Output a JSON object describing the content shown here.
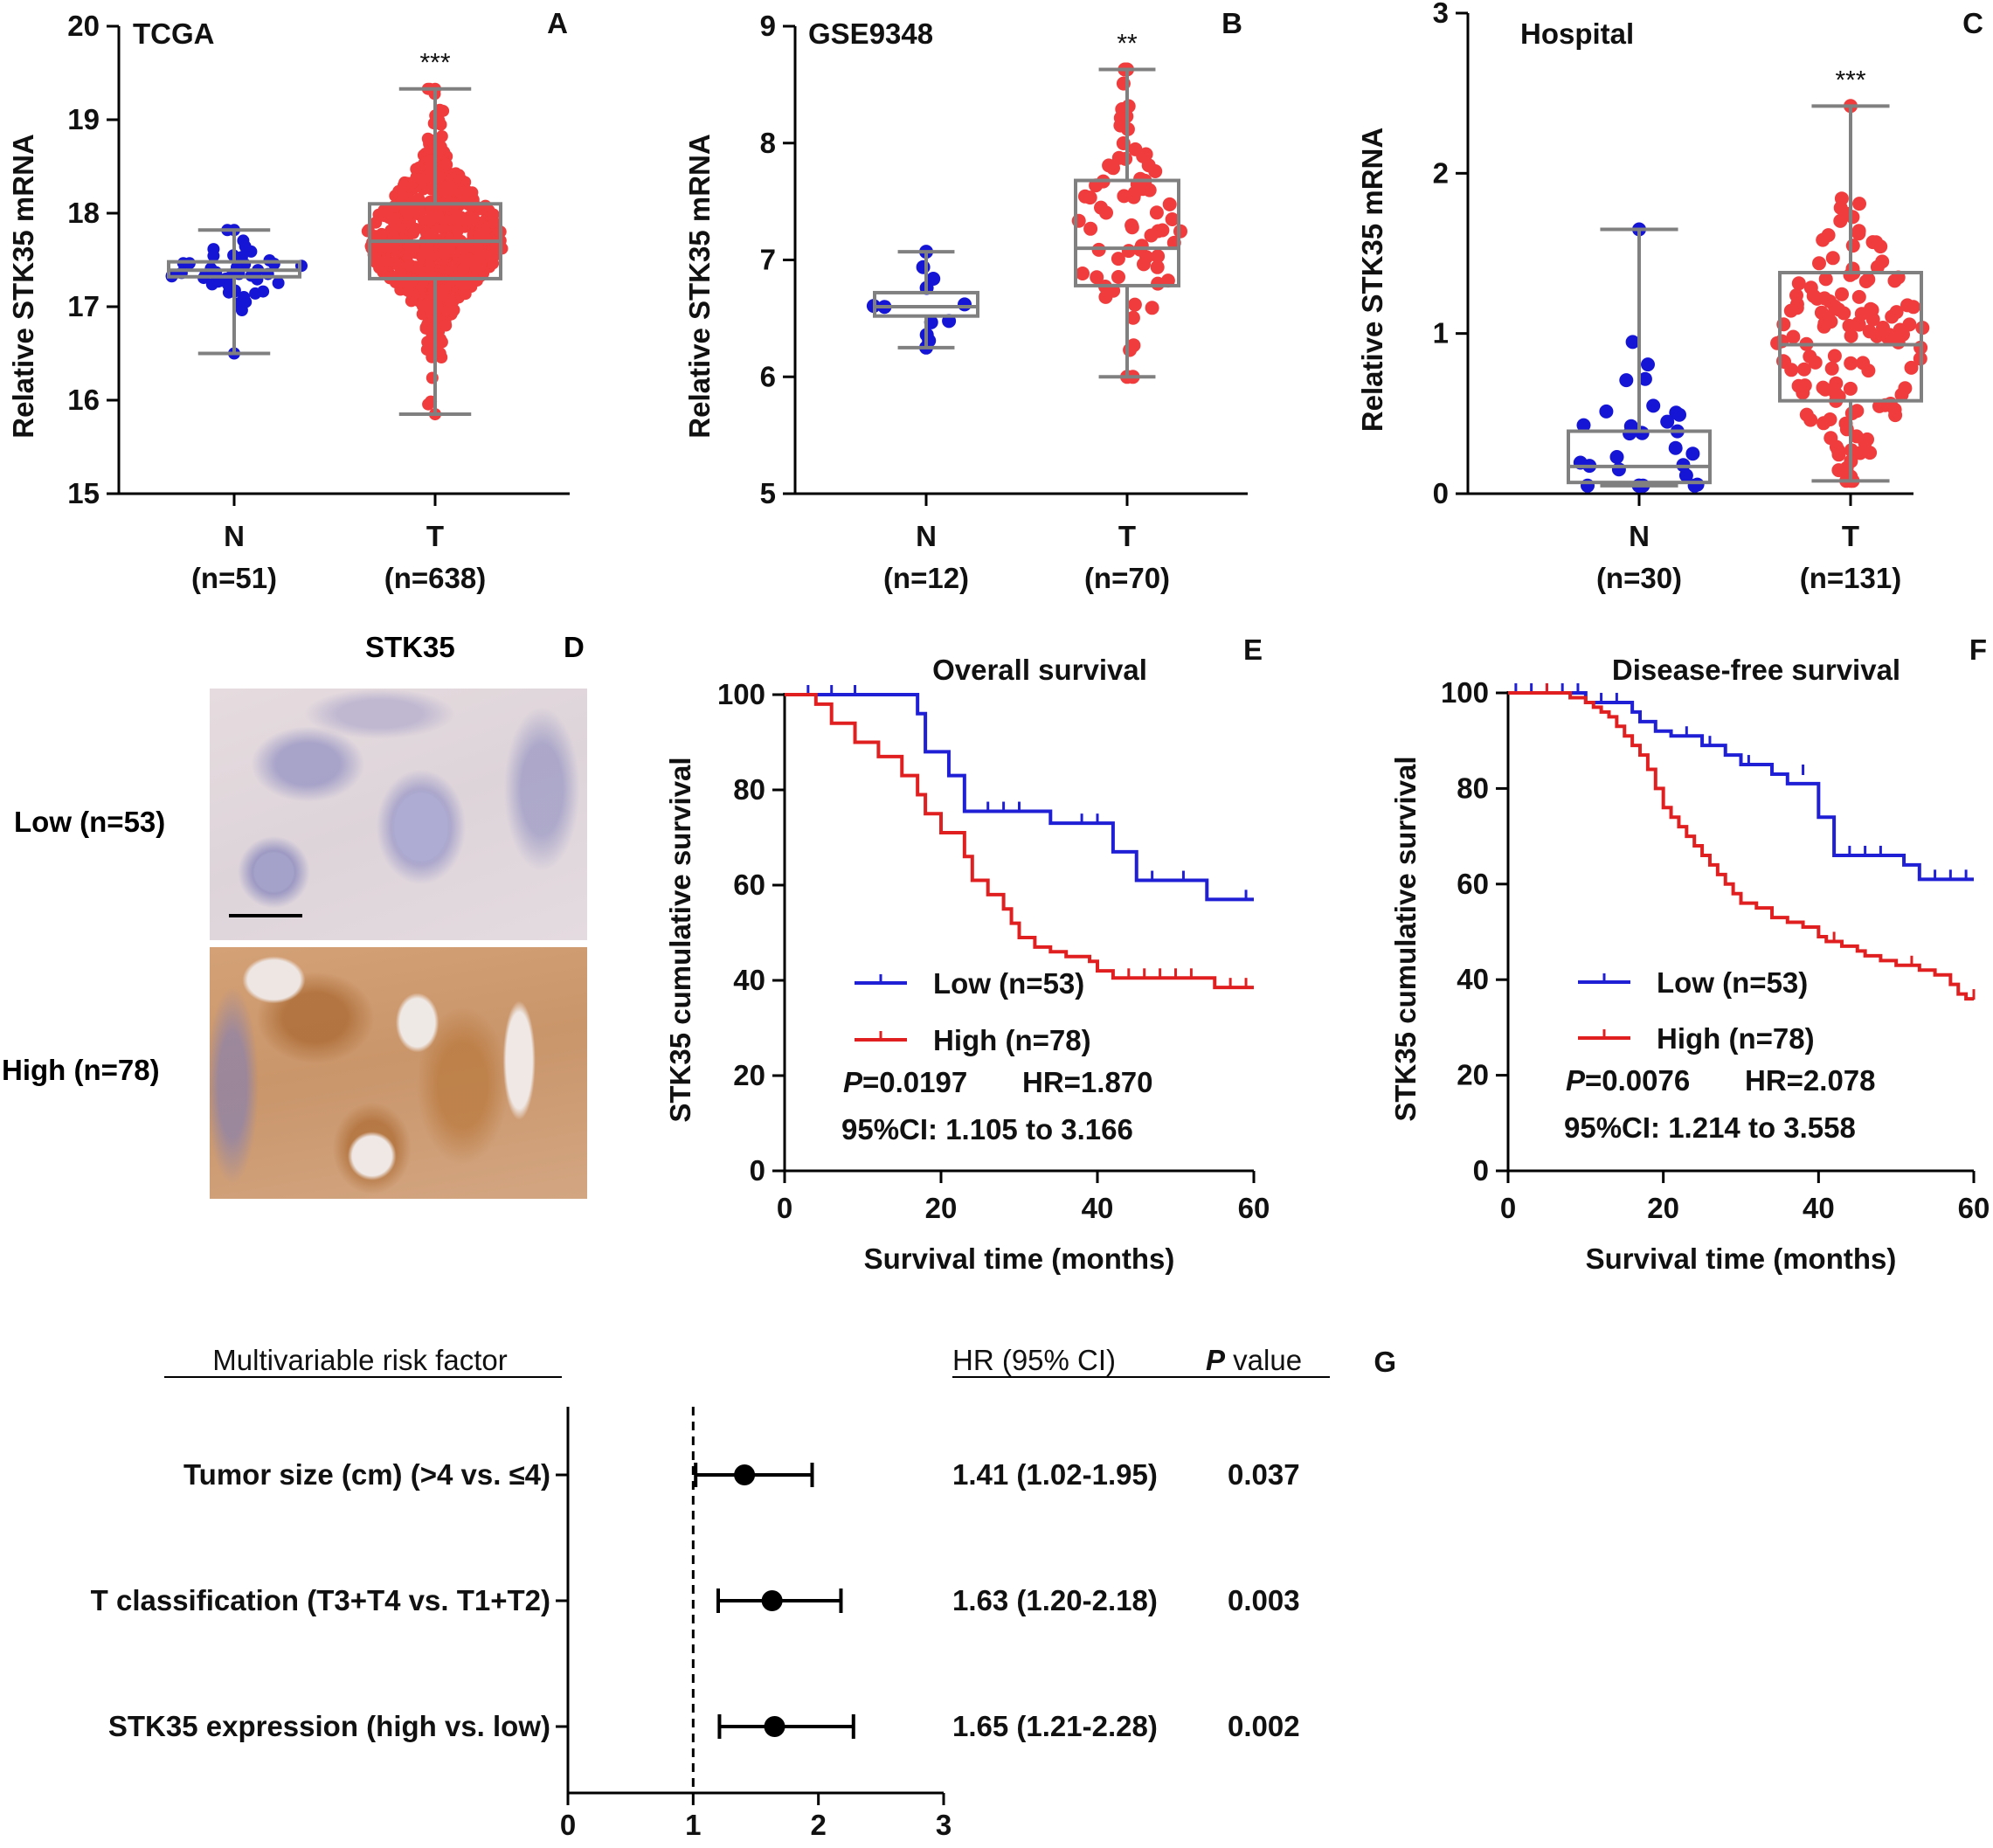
{
  "colors": {
    "normal": "#1515d6",
    "tumor": "#f03c3c",
    "low": "#1f1fd6",
    "high": "#e02020",
    "box": "#808080",
    "axis": "#000000"
  },
  "panel_d": {
    "letter": "D",
    "title": "STK35",
    "rows": [
      {
        "label": "Low (n=53)"
      },
      {
        "label": "High (n=78)"
      }
    ]
  },
  "chart_data": [
    {
      "id": "A",
      "type": "box-dot",
      "letter": "A",
      "title": "TCGA",
      "ylabel": "Relative STK35 mRNA",
      "ylim": [
        15,
        20
      ],
      "yticks": [
        15,
        16,
        17,
        18,
        19,
        20
      ],
      "groups": [
        {
          "name": "N",
          "n_label": "(n=51)",
          "color_key": "normal",
          "min": 16.5,
          "q1": 17.32,
          "median": 17.39,
          "q3": 17.48,
          "max": 17.82,
          "spread_center": 17.4,
          "spread_sd": 0.22,
          "n_points": 51
        },
        {
          "name": "T",
          "n_label": "(n=638)",
          "color_key": "tumor",
          "min": 15.85,
          "q1": 17.3,
          "median": 17.7,
          "q3": 18.1,
          "max": 19.33,
          "sig": "***",
          "spread_center": 17.72,
          "spread_sd": 0.52,
          "n_points": 638
        }
      ]
    },
    {
      "id": "B",
      "type": "box-dot",
      "letter": "B",
      "title": "GSE9348",
      "ylabel": "Relative STK35 mRNA",
      "ylim": [
        5,
        9
      ],
      "yticks": [
        5,
        6,
        7,
        8,
        9
      ],
      "groups": [
        {
          "name": "N",
          "n_label": "(n=12)",
          "color_key": "normal",
          "min": 6.25,
          "q1": 6.52,
          "median": 6.6,
          "q3": 6.72,
          "max": 7.07,
          "spread_center": 6.62,
          "spread_sd": 0.2,
          "n_points": 12
        },
        {
          "name": "T",
          "n_label": "(n=70)",
          "color_key": "tumor",
          "min": 6.0,
          "q1": 6.78,
          "median": 7.1,
          "q3": 7.68,
          "max": 8.63,
          "sig": "**",
          "spread_center": 7.2,
          "spread_sd": 0.55,
          "n_points": 70
        }
      ]
    },
    {
      "id": "C",
      "type": "box-dot",
      "letter": "C",
      "title": "Hospital",
      "ylabel": "Relative STK35 mRNA",
      "ylim": [
        0,
        3
      ],
      "yticks": [
        0,
        1,
        2,
        3
      ],
      "groups": [
        {
          "name": "N",
          "n_label": "(n=30)",
          "color_key": "normal",
          "min": 0.05,
          "q1": 0.07,
          "median": 0.17,
          "q3": 0.39,
          "max": 1.65,
          "spread_center": 0.22,
          "spread_sd": 0.3,
          "n_points": 30
        },
        {
          "name": "T",
          "n_label": "(n=131)",
          "color_key": "tumor",
          "min": 0.08,
          "q1": 0.58,
          "median": 0.93,
          "q3": 1.38,
          "max": 2.42,
          "sig": "***",
          "spread_center": 0.95,
          "spread_sd": 0.5,
          "n_points": 131
        }
      ]
    },
    {
      "id": "E",
      "type": "km-survival",
      "letter": "E",
      "title": "Overall survival",
      "xlabel": "Survival time (months)",
      "ylabel": "STK35 cumulative survival",
      "xlim": [
        0,
        60
      ],
      "ylim": [
        0,
        100
      ],
      "xticks": [
        0,
        20,
        40,
        60
      ],
      "yticks": [
        0,
        20,
        40,
        60,
        80,
        100
      ],
      "series": [
        {
          "name": "Low (n=53)",
          "color_key": "low",
          "steps": [
            [
              0,
              100
            ],
            [
              17,
              96
            ],
            [
              18,
              88
            ],
            [
              21,
              83
            ],
            [
              23,
              75.5
            ],
            [
              34,
              73
            ],
            [
              42,
              67
            ],
            [
              45,
              61
            ],
            [
              54,
              57
            ],
            [
              60,
              57
            ]
          ],
          "censor": [
            [
              3,
              100
            ],
            [
              6,
              100
            ],
            [
              9,
              100
            ],
            [
              26,
              75.5
            ],
            [
              28,
              75.5
            ],
            [
              30,
              75.5
            ],
            [
              38,
              73
            ],
            [
              40,
              73
            ],
            [
              47,
              61
            ],
            [
              51,
              61
            ],
            [
              59,
              57
            ]
          ]
        },
        {
          "name": "High (n=78)",
          "color_key": "high",
          "steps": [
            [
              0,
              100
            ],
            [
              4,
              98
            ],
            [
              6,
              94
            ],
            [
              9,
              90
            ],
            [
              12,
              87
            ],
            [
              15,
              83
            ],
            [
              17,
              79
            ],
            [
              18,
              75
            ],
            [
              20,
              71
            ],
            [
              23,
              66
            ],
            [
              24,
              61
            ],
            [
              26,
              58
            ],
            [
              28,
              55
            ],
            [
              29,
              52
            ],
            [
              30,
              49
            ],
            [
              32,
              47
            ],
            [
              34,
              46
            ],
            [
              36,
              45
            ],
            [
              39,
              44
            ],
            [
              40,
              42
            ],
            [
              42,
              40.5
            ],
            [
              55,
              38.5
            ],
            [
              60,
              38.5
            ]
          ],
          "censor": [
            [
              44,
              40.5
            ],
            [
              46,
              40.5
            ],
            [
              48,
              40.5
            ],
            [
              50,
              40.5
            ],
            [
              52,
              40.5
            ],
            [
              57,
              38.5
            ],
            [
              59,
              38.5
            ]
          ]
        }
      ],
      "annotations": {
        "p_label": "P",
        "p_value": "=0.0197",
        "hr": "HR=1.870",
        "ci": "95%CI: 1.105 to 3.166"
      }
    },
    {
      "id": "F",
      "type": "km-survival",
      "letter": "F",
      "title": "Disease-free survival",
      "xlabel": "Survival time (months)",
      "ylabel": "STK35 cumulative survival",
      "xlim": [
        0,
        60
      ],
      "ylim": [
        0,
        100
      ],
      "xticks": [
        0,
        20,
        40,
        60
      ],
      "yticks": [
        0,
        20,
        40,
        60,
        80,
        100
      ],
      "series": [
        {
          "name": "Low (n=53)",
          "color_key": "low",
          "steps": [
            [
              0,
              100
            ],
            [
              10,
              98
            ],
            [
              16,
              96
            ],
            [
              17,
              94
            ],
            [
              19,
              92
            ],
            [
              21,
              91
            ],
            [
              25,
              89
            ],
            [
              28,
              87
            ],
            [
              30,
              85
            ],
            [
              34,
              83
            ],
            [
              36,
              81
            ],
            [
              40,
              74
            ],
            [
              42,
              66
            ],
            [
              51,
              64
            ],
            [
              53,
              61
            ],
            [
              60,
              61
            ]
          ],
          "censor": [
            [
              1,
              100
            ],
            [
              3,
              100
            ],
            [
              5,
              100
            ],
            [
              7,
              100
            ],
            [
              9,
              100
            ],
            [
              12,
              98
            ],
            [
              14,
              98
            ],
            [
              23,
              91
            ],
            [
              26,
              89
            ],
            [
              31,
              85
            ],
            [
              38,
              83
            ],
            [
              44,
              66
            ],
            [
              46,
              66
            ],
            [
              48,
              66
            ],
            [
              55,
              61
            ],
            [
              57,
              61
            ],
            [
              59,
              61
            ]
          ]
        },
        {
          "name": "High (n=78)",
          "color_key": "high",
          "steps": [
            [
              0,
              100
            ],
            [
              8,
              99
            ],
            [
              10,
              98
            ],
            [
              11,
              97
            ],
            [
              12,
              96
            ],
            [
              13,
              95
            ],
            [
              14,
              93
            ],
            [
              15,
              91
            ],
            [
              16,
              89
            ],
            [
              17,
              87
            ],
            [
              18,
              84
            ],
            [
              19,
              80
            ],
            [
              20,
              76
            ],
            [
              21,
              74
            ],
            [
              22,
              72
            ],
            [
              23,
              70
            ],
            [
              24,
              68
            ],
            [
              25,
              66
            ],
            [
              26,
              64
            ],
            [
              27,
              62
            ],
            [
              28,
              60
            ],
            [
              29,
              58
            ],
            [
              30,
              56
            ],
            [
              32,
              55
            ],
            [
              34,
              53
            ],
            [
              36,
              52
            ],
            [
              38,
              51
            ],
            [
              40,
              49
            ],
            [
              41,
              48
            ],
            [
              43,
              47
            ],
            [
              45,
              46
            ],
            [
              46,
              45
            ],
            [
              48,
              44
            ],
            [
              50,
              43
            ],
            [
              53,
              42
            ],
            [
              55,
              41
            ],
            [
              57,
              39
            ],
            [
              58,
              37
            ],
            [
              59,
              36
            ],
            [
              60,
              36
            ]
          ],
          "censor": [
            [
              5,
              100
            ],
            [
              42,
              48
            ],
            [
              52,
              43
            ],
            [
              60,
              36
            ]
          ]
        }
      ],
      "annotations": {
        "p_label": "P",
        "p_value": "=0.0076",
        "hr": "HR=2.078",
        "ci": "95%CI: 1.214 to 3.558"
      }
    },
    {
      "id": "G",
      "type": "forest",
      "letter": "G",
      "header_left": "Multivariable risk factor",
      "header_hr": "HR (95% CI)",
      "header_p_italic": "P",
      "header_p_rest": " value",
      "xlim": [
        0,
        3
      ],
      "xticks": [
        0,
        1,
        2,
        3
      ],
      "ref_line": 1,
      "rows": [
        {
          "label": "Tumor size (cm) (>4 vs. ≤4)",
          "hr": 1.41,
          "lo": 1.02,
          "hi": 1.95,
          "hr_text": "1.41 (1.02-1.95)",
          "p": "0.037"
        },
        {
          "label": "T classification (T3+T4 vs. T1+T2)",
          "hr": 1.63,
          "lo": 1.2,
          "hi": 2.18,
          "hr_text": "1.63 (1.20-2.18)",
          "p": "0.003"
        },
        {
          "label": "STK35 expression (high vs. low)",
          "hr": 1.65,
          "lo": 1.21,
          "hi": 2.28,
          "hr_text": "1.65 (1.21-2.28)",
          "p": "0.002"
        }
      ]
    }
  ]
}
